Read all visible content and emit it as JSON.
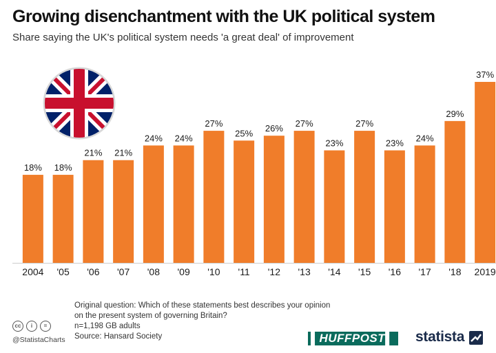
{
  "header": {
    "title": "Growing disenchantment with the UK political system",
    "subtitle": "Share saying the UK's political system needs 'a great deal' of improvement"
  },
  "chart_data": {
    "type": "bar",
    "title": "Growing disenchantment with the UK political system",
    "subtitle": "Share saying the UK's political system needs 'a great deal' of improvement",
    "categories": [
      "2004",
      "'05",
      "'06",
      "'07",
      "'08",
      "'09",
      "'10",
      "'11",
      "'12",
      "'13",
      "'14",
      "'15",
      "'16",
      "'17",
      "'18",
      "2019"
    ],
    "values": [
      18,
      18,
      21,
      21,
      24,
      24,
      27,
      25,
      26,
      27,
      23,
      27,
      23,
      24,
      29,
      37
    ],
    "value_labels": [
      "18%",
      "18%",
      "21%",
      "21%",
      "24%",
      "24%",
      "27%",
      "25%",
      "26%",
      "27%",
      "23%",
      "27%",
      "23%",
      "24%",
      "29%",
      "37%"
    ],
    "unit": "%",
    "ylim": [
      0,
      40
    ],
    "grid": false,
    "bar_color": "#f07d2a"
  },
  "footer": {
    "question_line1": "Original question: Which of these statements best describes your opinion",
    "question_line2": "on the present system of governing Britain?",
    "sample": "n=1,198 GB adults",
    "source": "Source: Hansard Society",
    "handle": "@StatistaCharts",
    "cc_icons": [
      "cc",
      "i",
      "="
    ]
  },
  "brands": {
    "huffpost": "▌HUFFPOST▌",
    "statista": "statista"
  },
  "colors": {
    "bar": "#f07d2a",
    "huffpost_green": "#0a6b5c",
    "statista_navy": "#1a2b4a",
    "flag_blue": "#012169",
    "flag_red": "#c8102e"
  }
}
